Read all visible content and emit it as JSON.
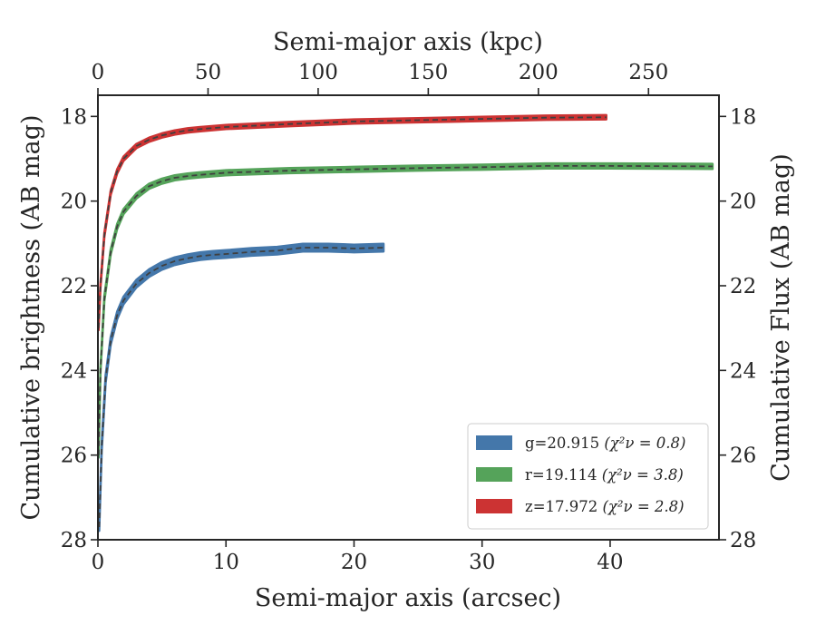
{
  "chart_data": {
    "type": "line",
    "xlabel": "Semi-major axis (arcsec)",
    "x2label": "Semi-major axis (kpc)",
    "ylabel": "Cumulative brightness (AB mag)",
    "y2label": "Cumulative Flux (AB mag)",
    "xlim": [
      0,
      48.5
    ],
    "x2lim": [
      0,
      282
    ],
    "ylim": [
      28,
      17.5
    ],
    "y_inverted": true,
    "xticks": [
      "0",
      "10",
      "20",
      "30",
      "40"
    ],
    "x2ticks": [
      "0",
      "50",
      "100",
      "150",
      "200",
      "250"
    ],
    "yticks": [
      "18",
      "20",
      "22",
      "24",
      "26",
      "28"
    ],
    "y2ticks": [
      "18",
      "20",
      "22",
      "24",
      "26",
      "28"
    ],
    "legend_position": "lower-right",
    "model_line_style": "dashed",
    "series": [
      {
        "name": "g=20.915",
        "chi_label": "(χ²ν = 0.8)",
        "color": "#4477aa",
        "x": [
          0.1,
          0.3,
          0.6,
          1.0,
          1.5,
          2.0,
          3.0,
          4.0,
          5.0,
          6.0,
          7.0,
          8.0,
          9.0,
          10.0,
          12.0,
          14.0,
          16.0,
          18.0,
          20.0,
          22.3
        ],
        "y": [
          27.7,
          25.8,
          24.2,
          23.3,
          22.7,
          22.35,
          21.95,
          21.7,
          21.53,
          21.42,
          21.35,
          21.3,
          21.27,
          21.25,
          21.2,
          21.17,
          21.1,
          21.1,
          21.12,
          21.1
        ],
        "band": 0.09
      },
      {
        "name": "r=19.114",
        "chi_label": "(χ²ν = 3.8)",
        "color": "#55a35a",
        "x": [
          0.05,
          0.2,
          0.5,
          1.0,
          1.5,
          2.0,
          3.0,
          4.0,
          5.0,
          6.0,
          7.0,
          8.0,
          10.0,
          15.0,
          20.0,
          25.0,
          30.0,
          35.0,
          40.0,
          48.0
        ],
        "y": [
          26.0,
          24.0,
          22.3,
          21.2,
          20.6,
          20.25,
          19.88,
          19.65,
          19.53,
          19.45,
          19.41,
          19.38,
          19.33,
          19.28,
          19.25,
          19.22,
          19.2,
          19.17,
          19.17,
          19.18
        ],
        "band": 0.06
      },
      {
        "name": "z=17.972",
        "chi_label": "(χ²ν = 2.8)",
        "color": "#cc3333",
        "x": [
          0.05,
          0.2,
          0.5,
          1.0,
          1.5,
          2.0,
          3.0,
          4.0,
          5.0,
          6.0,
          7.0,
          8.0,
          10.0,
          15.0,
          20.0,
          25.0,
          30.0,
          35.0,
          39.7
        ],
        "y": [
          23.0,
          22.0,
          20.8,
          19.8,
          19.3,
          19.0,
          18.7,
          18.55,
          18.45,
          18.38,
          18.33,
          18.3,
          18.25,
          18.18,
          18.12,
          18.09,
          18.06,
          18.03,
          18.02
        ],
        "band": 0.05
      }
    ]
  }
}
